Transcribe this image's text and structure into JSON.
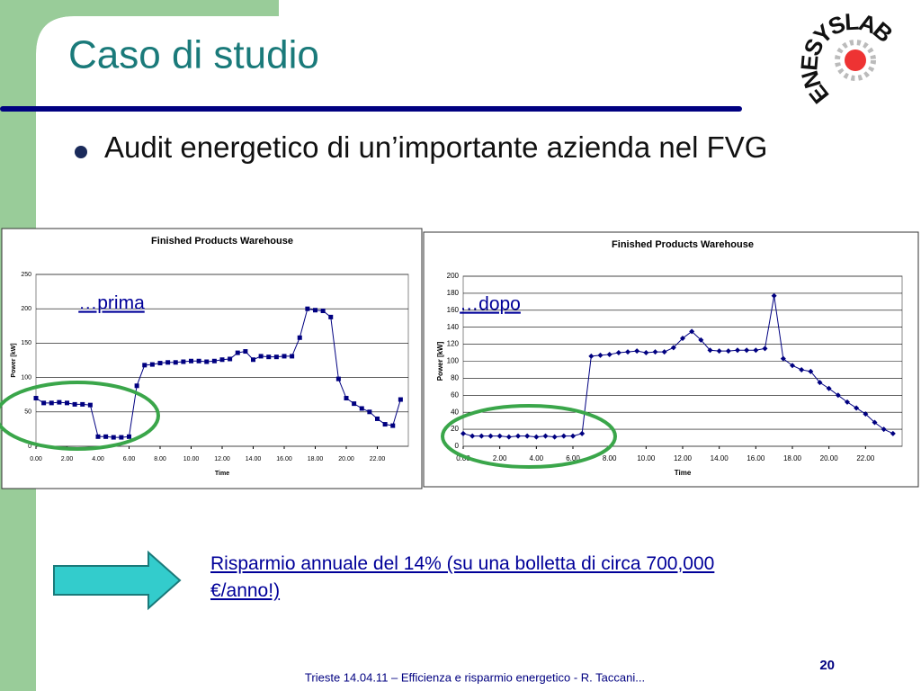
{
  "slide": {
    "title": "Caso di studio",
    "bullet": "Audit energetico di un’importante azienda nel FVG",
    "note": "Risparmio annuale del 14% (su una bolletta di circa 700,000 €/anno!)",
    "footer": "Trieste 14.04.11 – Efficienza e risparmio energetico - R. Taccani...",
    "page": "20",
    "logo": "ENESYSLAB"
  },
  "chart_data": [
    {
      "type": "line",
      "title": "Finished Products Warehouse",
      "x_label": "Time",
      "y_label": "Power [kW]",
      "annotation": "…prima",
      "color": "#000080",
      "marker": "square",
      "grid": true,
      "x": [
        0,
        0.5,
        1,
        1.5,
        2,
        2.5,
        3,
        3.5,
        4,
        4.5,
        5,
        5.5,
        6,
        6.5,
        7,
        7.5,
        8,
        8.5,
        9,
        9.5,
        10,
        10.5,
        11,
        11.5,
        12,
        12.5,
        13,
        13.5,
        14,
        14.5,
        15,
        15.5,
        16,
        16.5,
        17,
        17.5,
        18,
        18.5,
        19,
        19.5,
        20,
        20.5,
        21,
        21.5,
        22,
        22.5,
        23,
        23.5
      ],
      "values": [
        70,
        63,
        63,
        64,
        63,
        61,
        61,
        60,
        14,
        14,
        13,
        13,
        14,
        88,
        118,
        119,
        121,
        122,
        122,
        123,
        124,
        124,
        123,
        124,
        126,
        127,
        136,
        138,
        126,
        131,
        130,
        130,
        131,
        131,
        158,
        200,
        198,
        197,
        188,
        98,
        70,
        62,
        55,
        50,
        40,
        32,
        30,
        68
      ],
      "xlim": [
        0,
        24
      ],
      "xticks": [
        {
          "value": 0,
          "label": "0.00"
        },
        {
          "value": 2,
          "label": "2.00"
        },
        {
          "value": 4,
          "label": "4.00"
        },
        {
          "value": 6,
          "label": "6.00"
        },
        {
          "value": 8,
          "label": "8.00"
        },
        {
          "value": 10,
          "label": "10.00"
        },
        {
          "value": 12,
          "label": "12.00"
        },
        {
          "value": 14,
          "label": "14.00"
        },
        {
          "value": 16,
          "label": "16.00"
        },
        {
          "value": 18,
          "label": "18.00"
        },
        {
          "value": 20,
          "label": "20.00"
        },
        {
          "value": 22,
          "label": "22.00"
        }
      ],
      "ylim": [
        0,
        250
      ],
      "yticks": [
        0,
        50,
        100,
        150,
        200,
        250
      ]
    },
    {
      "type": "line",
      "title": "Finished Products Warehouse",
      "x_label": "Time",
      "y_label": "Power [kW]",
      "annotation": "…dopo",
      "color": "#000080",
      "marker": "diamond",
      "grid": true,
      "x": [
        0,
        0.5,
        1,
        1.5,
        2,
        2.5,
        3,
        3.5,
        4,
        4.5,
        5,
        5.5,
        6,
        6.5,
        7,
        7.5,
        8,
        8.5,
        9,
        9.5,
        10,
        10.5,
        11,
        11.5,
        12,
        12.5,
        13,
        13.5,
        14,
        14.5,
        15,
        15.5,
        16,
        16.5,
        17,
        17.5,
        18,
        18.5,
        19,
        19.5,
        20,
        20.5,
        21,
        21.5,
        22,
        22.5,
        23,
        23.5
      ],
      "values": [
        15,
        12,
        12,
        12,
        12,
        11,
        12,
        12,
        11,
        12,
        11,
        12,
        12,
        15,
        106,
        107,
        108,
        110,
        111,
        112,
        110,
        111,
        111,
        116,
        127,
        135,
        125,
        113,
        112,
        112,
        113,
        113,
        113,
        115,
        177,
        103,
        95,
        90,
        88,
        75,
        68,
        60,
        52,
        45,
        38,
        28,
        20,
        15
      ],
      "xlim": [
        0,
        24
      ],
      "xticks": [
        {
          "value": 0,
          "label": "0.00"
        },
        {
          "value": 2,
          "label": "2.00"
        },
        {
          "value": 4,
          "label": "4.00"
        },
        {
          "value": 6,
          "label": "6.00"
        },
        {
          "value": 8,
          "label": "8.00"
        },
        {
          "value": 10,
          "label": "10.00"
        },
        {
          "value": 12,
          "label": "12.00"
        },
        {
          "value": 14,
          "label": "14.00"
        },
        {
          "value": 16,
          "label": "16.00"
        },
        {
          "value": 18,
          "label": "18.00"
        },
        {
          "value": 20,
          "label": "20.00"
        },
        {
          "value": 22,
          "label": "22.00"
        }
      ],
      "ylim": [
        0,
        200
      ],
      "yticks": [
        0,
        20,
        40,
        60,
        80,
        100,
        120,
        140,
        160,
        180,
        200
      ]
    }
  ]
}
